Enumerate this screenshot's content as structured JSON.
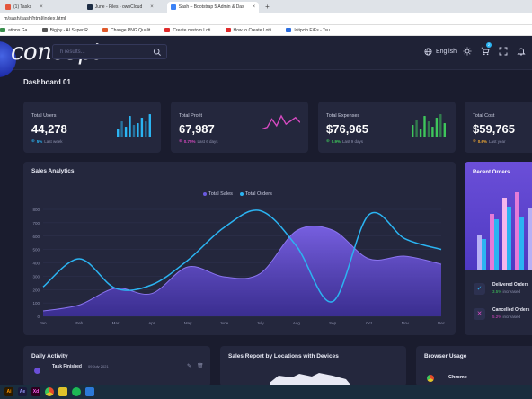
{
  "browser": {
    "tabs": [
      {
        "title": "(1) Tasks",
        "color": "#e4563c"
      },
      {
        "title": "June - Files - ownCloud",
        "color": "#1d2d44"
      },
      {
        "title": "Sash – Bootstrap 5 Admin & Das",
        "color": "#3b82f6"
      }
    ],
    "new_tab": "+",
    "url": "m/sash/sash/html/index.html",
    "bookmarks": [
      {
        "label": "ations Ga...",
        "color": "#3a8f4d"
      },
      {
        "label": "Bigjpy - AI Super R...",
        "color": "#555555"
      },
      {
        "label": "Change PNG Qualit...",
        "color": "#e05a2b"
      },
      {
        "label": "Create custom Loti...",
        "color": "#e02b2b"
      },
      {
        "label": "How to Create Lotti...",
        "color": "#e02b2b"
      },
      {
        "label": "lotipcib EiEs - Tsu...",
        "color": "#2b6ee0"
      }
    ]
  },
  "header": {
    "logo": "concept",
    "search_placeholder": "h results...",
    "language": "English",
    "cart_count": "2"
  },
  "page_title": "Dashboard 01",
  "stats": [
    {
      "label": "Total Users",
      "value": "44,278",
      "change": "5%",
      "period": "Last week",
      "color": "#2bb4f2",
      "spark": [
        5,
        9,
        6,
        12,
        7,
        8,
        11,
        9,
        13
      ]
    },
    {
      "label": "Total Profit",
      "value": "67,987",
      "change": "0.75%",
      "period": "Last 6 days",
      "color": "#d64ac1",
      "spark": [
        3,
        4,
        9,
        5,
        11,
        6,
        8,
        10,
        7
      ]
    },
    {
      "label": "Total Expenses",
      "value": "$76,965",
      "change": "0.9%",
      "period": "Last 9 days",
      "color": "#3ec65b",
      "spark": [
        7,
        10,
        5,
        12,
        9,
        6,
        11,
        13,
        8
      ]
    },
    {
      "label": "Total Cost",
      "value": "$59,765",
      "change": "0.6%",
      "period": "Last year",
      "color": "#f0a833",
      "spark": []
    }
  ],
  "analytics": {
    "title": "Sales Analytics",
    "legend": [
      {
        "name": "Total Sales",
        "color": "#6a5ae0"
      },
      {
        "name": "Total Orders",
        "color": "#2bb4f2"
      }
    ]
  },
  "chart_data": {
    "type": "area",
    "categories": [
      "Jan",
      "Feb",
      "Mar",
      "Apr",
      "May",
      "June",
      "July",
      "Aug",
      "Sep",
      "Oct",
      "Nov",
      "Dec"
    ],
    "series": [
      {
        "name": "Total Sales",
        "type": "area",
        "values": [
          40,
          85,
          210,
          170,
          370,
          295,
          320,
          640,
          645,
          430,
          450,
          390
        ]
      },
      {
        "name": "Total Orders",
        "type": "line",
        "values": [
          220,
          430,
          210,
          235,
          420,
          665,
          790,
          525,
          110,
          760,
          580,
          500
        ]
      }
    ],
    "yticks": [
      "0",
      "100",
      "200",
      "300",
      "400",
      "500",
      "600",
      "700",
      "800"
    ],
    "ylim": [
      0,
      800
    ],
    "grid": true,
    "legend_position": "top-center"
  },
  "recent_orders": {
    "title": "Recent Orders",
    "items": [
      {
        "name": "Delivered Orders",
        "change": "3.5%",
        "label": "increased",
        "icon": "✓",
        "color": "#2bb4f2"
      },
      {
        "name": "Cancelled Orders",
        "change": "5.2%",
        "label": "increased",
        "icon": "✕",
        "color": "#d64ac1"
      }
    ]
  },
  "bottom_cards": [
    {
      "title": "Daily Activity"
    },
    {
      "title": "Sales Report by Locations with Devices"
    },
    {
      "title": "Browser Usage"
    }
  ],
  "activity": {
    "task": "Task Finished",
    "date": "09 July 2021"
  },
  "browser_usage": {
    "first": "Chrome"
  },
  "taskbar": [
    {
      "label": "Ai",
      "color": "#ff9a00",
      "bg": "#2b1a00"
    },
    {
      "label": "Ae",
      "color": "#9999ff",
      "bg": "#1a1a3a"
    },
    {
      "label": "Xd",
      "color": "#ff61f6",
      "bg": "#2e001f"
    },
    {
      "label": "",
      "color": "#ffffff",
      "bg": "#e44b2b"
    },
    {
      "label": "",
      "color": "#ffffff",
      "bg": "#dfc32b"
    },
    {
      "label": "",
      "color": "#ffffff",
      "bg": "#1db954"
    },
    {
      "label": "",
      "color": "#ffffff",
      "bg": "#2b79d8"
    }
  ]
}
